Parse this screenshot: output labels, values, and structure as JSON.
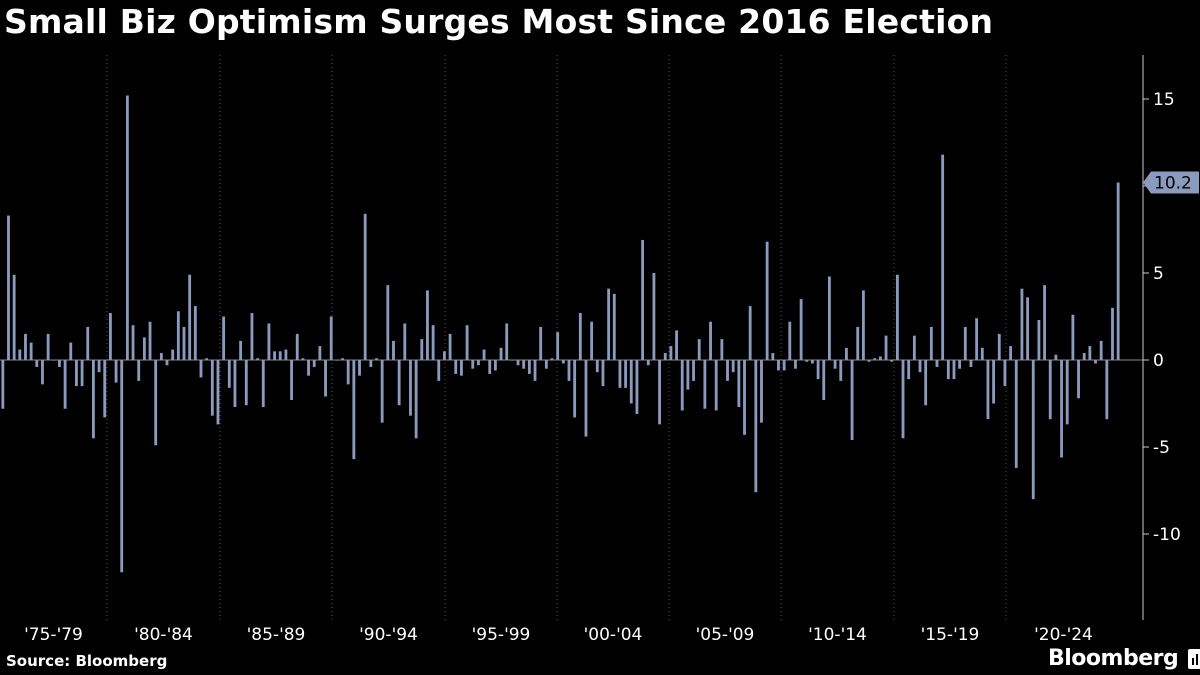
{
  "title": "Small Biz Optimism Surges Most Since 2016 Election",
  "source": "Source: Bloomberg",
  "brand": "Bloomberg",
  "icons": {
    "brand_icon": "bloomberg-terminal-icon"
  },
  "colors": {
    "background": "#000000",
    "bar": "#8a9bbd",
    "label_badge": "#8a9bbd",
    "grid": "#555555",
    "text": "#ffffff"
  },
  "chart_data": {
    "type": "bar",
    "x_tick_labels": [
      "'75-'79",
      "'80-'84",
      "'85-'89",
      "'90-'94",
      "'95-'99",
      "'00-'04",
      "'05-'09",
      "'10-'14",
      "'15-'19",
      "'20-'24"
    ],
    "y_ticks": [
      15,
      10,
      5,
      0,
      -5,
      -10
    ],
    "ylim": [
      -15,
      17.5
    ],
    "grid": "vertical dotted lines between periods",
    "y_axis_position": "right",
    "last_value_label": "10.2",
    "values": [
      -2.8,
      8.3,
      4.9,
      0.6,
      1.5,
      1.0,
      -0.4,
      -1.4,
      1.5,
      0.0,
      -0.4,
      -2.8,
      1.0,
      -1.5,
      -1.5,
      1.9,
      -4.5,
      -0.7,
      -3.3,
      2.7,
      -1.3,
      -12.2,
      15.2,
      2.0,
      -1.2,
      1.3,
      2.2,
      -4.9,
      0.4,
      -0.3,
      0.6,
      2.8,
      1.9,
      4.9,
      3.1,
      -1.0,
      0.1,
      -3.2,
      -3.7,
      2.5,
      -1.6,
      -2.7,
      1.1,
      -2.6,
      2.7,
      0.1,
      -2.7,
      2.1,
      0.5,
      0.5,
      0.6,
      -2.3,
      1.5,
      0.1,
      -0.9,
      -0.4,
      0.8,
      -2.1,
      2.5,
      0.0,
      0.1,
      -1.4,
      -5.7,
      -0.9,
      8.4,
      -0.4,
      0.1,
      -3.6,
      4.3,
      1.1,
      -2.6,
      2.1,
      -3.2,
      -4.5,
      1.2,
      4.0,
      2.0,
      -1.2,
      0.5,
      1.5,
      -0.8,
      -0.9,
      2.0,
      -0.5,
      -0.3,
      0.6,
      -0.8,
      -0.6,
      0.7,
      2.1,
      0.0,
      -0.3,
      -0.5,
      -0.8,
      -1.2,
      1.9,
      -0.5,
      0.1,
      1.6,
      -0.2,
      -1.2,
      -3.3,
      2.7,
      -4.4,
      2.2,
      -0.7,
      -1.5,
      4.1,
      3.8,
      -1.6,
      -1.6,
      -2.5,
      -3.1,
      6.9,
      -0.3,
      5.0,
      -3.7,
      0.4,
      0.8,
      1.7,
      -2.9,
      -1.7,
      -1.2,
      1.2,
      -2.8,
      2.2,
      -2.9,
      1.2,
      -1.2,
      -0.7,
      -2.7,
      -4.3,
      3.1,
      -7.6,
      -3.6,
      6.8,
      0.4,
      -0.6,
      -0.6,
      2.2,
      -0.5,
      3.5,
      -0.1,
      -0.2,
      -1.1,
      -2.3,
      4.8,
      -0.5,
      -1.2,
      0.7,
      -4.6,
      1.9,
      4.0,
      -0.1,
      0.1,
      0.2,
      1.4,
      -0.1,
      4.9,
      -4.5,
      -1.1,
      1.4,
      -0.7,
      -2.6,
      1.9,
      -0.4,
      11.8,
      -1.1,
      -1.1,
      -0.5,
      1.9,
      -0.4,
      2.4,
      0.7,
      -3.4,
      -2.5,
      1.5,
      -1.5,
      0.8,
      -6.2,
      4.1,
      3.6,
      -8.0,
      2.3,
      4.3,
      -3.4,
      0.3,
      -5.6,
      -3.7,
      2.6,
      -2.2,
      0.4,
      0.8,
      -0.2,
      1.1,
      -3.4,
      3.0,
      10.2
    ]
  }
}
